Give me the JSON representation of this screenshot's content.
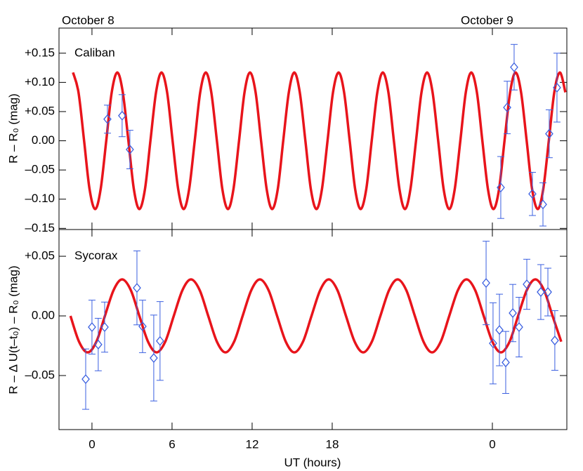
{
  "chart_data": [
    {
      "type": "line",
      "label": "Caliban",
      "y_label": "R – R₀ (mag)",
      "annotations": [
        "October 8",
        "October 9"
      ],
      "ylim": [
        -0.152,
        0.193
      ],
      "yticks": [
        {
          "value": 0.15,
          "label": "+0.15"
        },
        {
          "value": 0.1,
          "label": "+0.10"
        },
        {
          "value": 0.05,
          "label": "+0.05"
        },
        {
          "value": 0,
          "label": "0.00"
        },
        {
          "value": -0.05,
          "label": "–0.05"
        },
        {
          "value": -0.1,
          "label": "–0.10"
        },
        {
          "value": -0.15,
          "label": "–0.15"
        }
      ],
      "series": [
        {
          "color": "#e8141b",
          "x": [
            -1.42,
            -1.01,
            -0.59,
            -0.18,
            0.24,
            0.65,
            1.07,
            1.48,
            1.9,
            2.31,
            2.73,
            3.14,
            3.55,
            3.97,
            4.38,
            4.8,
            5.21,
            5.63,
            6.04,
            6.46,
            6.87,
            7.28,
            7.7,
            8.11,
            8.53,
            8.94,
            9.36,
            9.77,
            10.19,
            10.6,
            11.02,
            11.43,
            11.84,
            12.26,
            12.67,
            13.09,
            13.5,
            13.92,
            14.33,
            14.75,
            15.16,
            15.57,
            15.99,
            16.4,
            16.82,
            17.23,
            17.65,
            18.06,
            18.48,
            18.89,
            19.31,
            19.72,
            20.13,
            20.55,
            20.96,
            21.38,
            21.79,
            22.21,
            22.62,
            23.04,
            23.45,
            23.86,
            24.28,
            24.69,
            25.11,
            25.52,
            25.94,
            26.35,
            26.77,
            27.18,
            27.6,
            28.01,
            28.42,
            28.84,
            29.25,
            29.67,
            30.08,
            30.5,
            30.91,
            31.33,
            31.74,
            32.15,
            32.57,
            32.98,
            33.4,
            33.81,
            34.23,
            34.64,
            35.06,
            35.47
          ],
          "values": [
            0.117,
            0.083,
            0,
            -0.083,
            -0.117,
            -0.083,
            0,
            0.083,
            0.117,
            0.083,
            0,
            -0.083,
            -0.117,
            -0.083,
            0,
            0.083,
            0.117,
            0.083,
            0,
            -0.083,
            -0.117,
            -0.083,
            0,
            0.083,
            0.117,
            0.083,
            0,
            -0.083,
            -0.117,
            -0.083,
            0,
            0.083,
            0.117,
            0.083,
            0,
            -0.083,
            -0.117,
            -0.083,
            0,
            0.083,
            0.117,
            0.083,
            0,
            -0.083,
            -0.117,
            -0.083,
            0,
            0.083,
            0.117,
            0.083,
            0,
            -0.083,
            -0.117,
            -0.083,
            0,
            0.083,
            0.117,
            0.083,
            0,
            -0.083,
            -0.117,
            -0.083,
            0,
            0.083,
            0.117,
            0.083,
            0,
            -0.083,
            -0.117,
            -0.083,
            0,
            0.083,
            0.117,
            0.083,
            0,
            -0.083,
            -0.117,
            -0.083,
            0,
            0.083,
            0.117,
            0.083,
            0,
            -0.083,
            -0.117,
            -0.083,
            0,
            0.083,
            0.117,
            0.083
          ]
        },
        {
          "color": "#3a5fe0",
          "x": [
            1.16,
            2.26,
            2.84,
            30.63,
            31.11,
            31.63,
            33.0,
            33.79,
            34.26,
            34.84
          ],
          "values": [
            0.037,
            0.043,
            -0.015,
            -0.08,
            0.057,
            0.126,
            -0.091,
            -0.109,
            0.012,
            0.091
          ],
          "errors": [
            0.024,
            0.036,
            0.033,
            0.053,
            0.045,
            0.039,
            0.037,
            0.037,
            0.041,
            0.059
          ]
        }
      ]
    },
    {
      "type": "line",
      "label": "Sycorax",
      "y_label": "R – Δ U(t–t₀) – R₀ (mag)",
      "x_label": "UT (hours)",
      "xlim": [
        -2.47,
        35.58
      ],
      "xticks": [
        0,
        6,
        12,
        18,
        {
          "value": 30,
          "label": "0"
        }
      ],
      "ylim": [
        -0.0953,
        0.0724
      ],
      "yticks": [
        {
          "value": 0.05,
          "label": "+0.05"
        },
        {
          "value": 0,
          "label": "0.00"
        },
        {
          "value": -0.05,
          "label": "–0.05"
        }
      ],
      "series": [
        {
          "color": "#e8141b",
          "x": [
            -1.61,
            -0.97,
            -0.32,
            0.33,
            0.97,
            1.62,
            2.26,
            2.91,
            3.55,
            4.2,
            4.84,
            5.49,
            6.13,
            6.78,
            7.42,
            8.07,
            8.71,
            9.36,
            10.0,
            10.65,
            11.29,
            11.94,
            12.58,
            13.23,
            13.87,
            14.52,
            15.16,
            15.81,
            16.45,
            17.1,
            17.74,
            18.39,
            19.03,
            19.68,
            20.32,
            20.97,
            21.61,
            22.26,
            22.9,
            23.55,
            24.19,
            24.84,
            25.48,
            26.13,
            26.77,
            27.42,
            28.06,
            28.71,
            29.35,
            30.0,
            30.64,
            31.29,
            31.93,
            32.58,
            33.22,
            33.87,
            34.51,
            35.16
          ],
          "values": [
            0,
            -0.0216,
            -0.0306,
            -0.0216,
            0,
            0.0216,
            0.0306,
            0.0216,
            0,
            -0.0216,
            -0.0306,
            -0.0216,
            0,
            0.0216,
            0.0306,
            0.0216,
            0,
            -0.0216,
            -0.0306,
            -0.0216,
            0,
            0.0216,
            0.0306,
            0.0216,
            0,
            -0.0216,
            -0.0306,
            -0.0216,
            0,
            0.0216,
            0.0306,
            0.0216,
            0,
            -0.0216,
            -0.0306,
            -0.0216,
            0,
            0.0216,
            0.0306,
            0.0216,
            0,
            -0.0216,
            -0.0306,
            -0.0216,
            0,
            0.0216,
            0.0306,
            0.0216,
            0,
            -0.0216,
            -0.0306,
            -0.0216,
            0,
            0.0216,
            0.0306,
            0.0216,
            0,
            -0.0216
          ]
        },
        {
          "color": "#3a5fe0",
          "x": [
            -0.47,
            0,
            0.47,
            0.95,
            3.37,
            3.79,
            4.63,
            5.1,
            29.53,
            30.05,
            30.53,
            31.0,
            31.53,
            32.0,
            32.58,
            33.63,
            34.16,
            34.68
          ],
          "values": [
            -0.053,
            -0.0094,
            -0.024,
            -0.0094,
            0.0235,
            -0.0088,
            -0.0353,
            -0.021,
            0.0276,
            -0.023,
            -0.0118,
            -0.039,
            0.0024,
            -0.0094,
            0.0265,
            0.02,
            0.02,
            -0.0206
          ],
          "errors": [
            0.0253,
            0.0226,
            0.022,
            0.021,
            0.031,
            0.022,
            0.036,
            0.033,
            0.035,
            0.034,
            0.03,
            0.026,
            0.024,
            0.025,
            0.021,
            0.023,
            0.02,
            0.025
          ]
        }
      ]
    }
  ]
}
